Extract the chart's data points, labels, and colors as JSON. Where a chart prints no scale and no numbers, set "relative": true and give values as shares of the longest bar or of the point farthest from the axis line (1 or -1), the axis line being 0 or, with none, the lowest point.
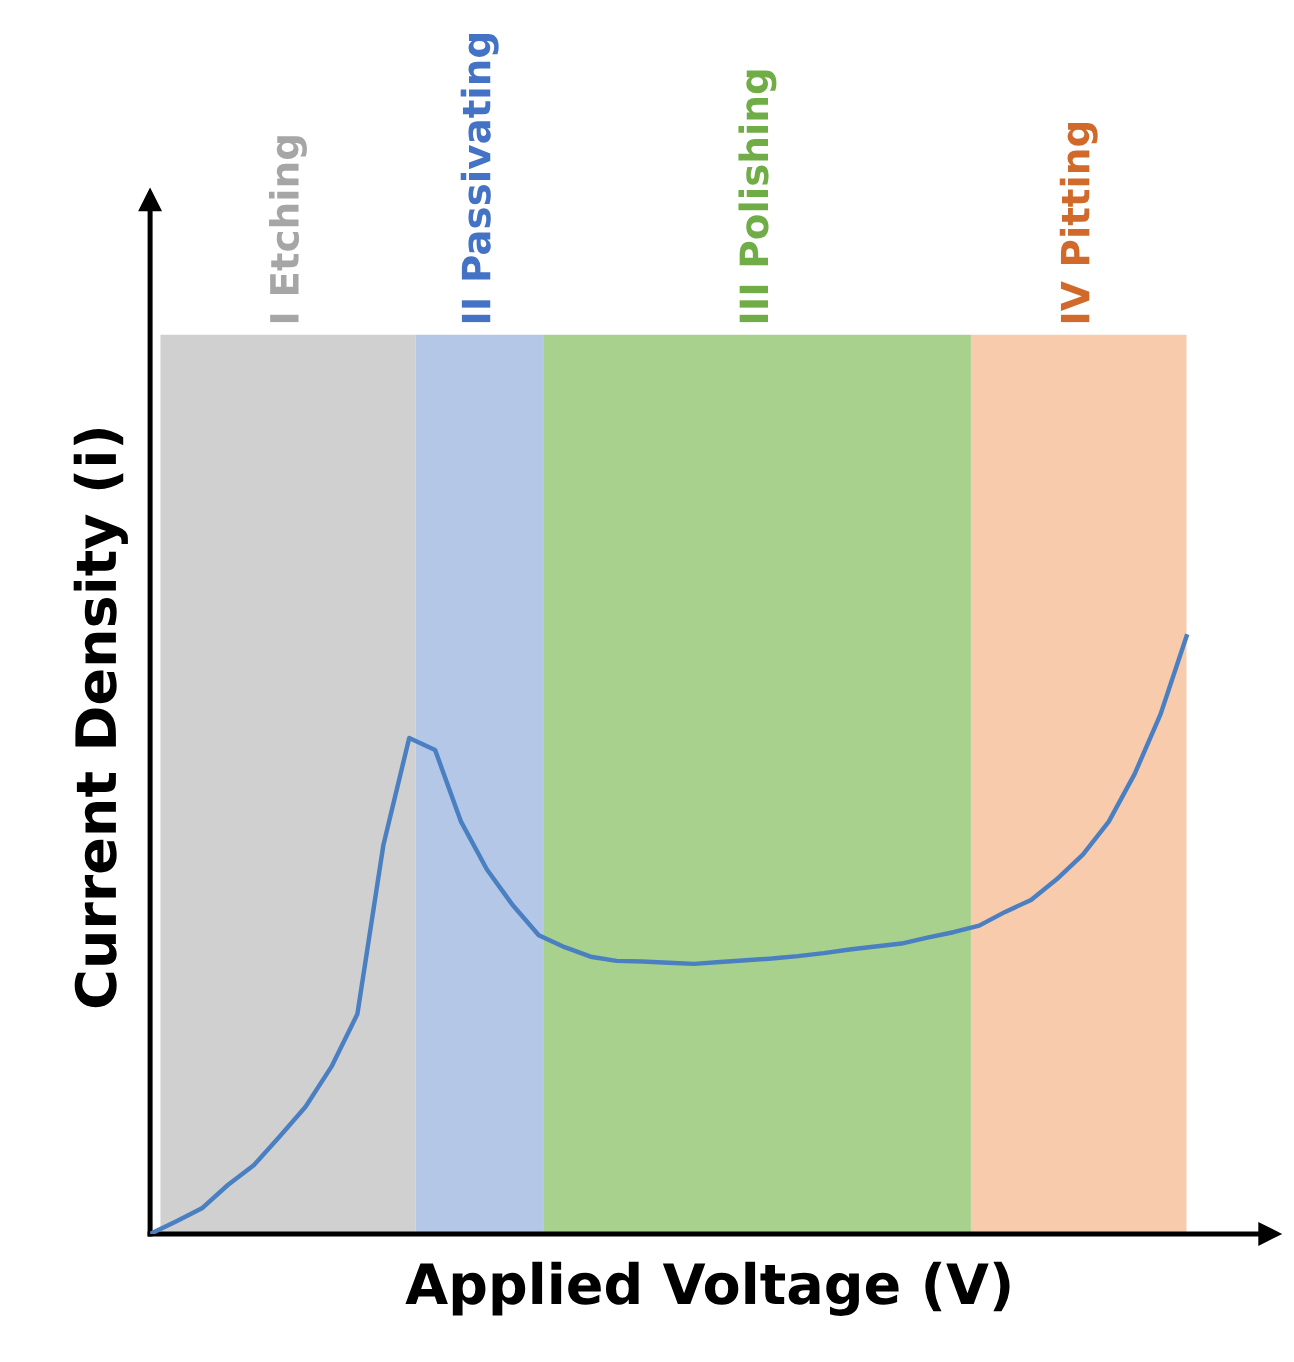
{
  "chart_data": {
    "type": "line",
    "relative": true,
    "xlabel": "Applied Voltage (V)",
    "ylabel": "Current Density (i)",
    "categories": [
      null,
      null,
      null,
      null,
      null,
      null,
      null,
      null,
      null,
      null,
      null,
      null,
      null,
      null,
      null,
      null,
      null,
      null,
      null,
      null,
      null,
      null,
      null,
      null,
      null,
      null,
      null,
      null,
      null,
      null,
      null,
      null,
      null,
      null,
      null,
      null,
      null,
      null,
      null,
      null,
      null
    ],
    "series": [
      {
        "color": "#4a7fc1",
        "values": [
          0,
          0.021,
          0.043,
          0.082,
          0.115,
          0.163,
          0.213,
          0.28,
          0.368,
          0.65,
          0.83,
          0.81,
          0.69,
          0.61,
          0.55,
          0.5,
          0.48,
          0.464,
          0.457,
          0.456,
          0.454,
          0.452,
          0.455,
          0.458,
          0.461,
          0.465,
          0.47,
          0.476,
          0.481,
          0.486,
          0.496,
          0.505,
          0.516,
          0.539,
          0.559,
          0.594,
          0.635,
          0.69,
          0.77,
          0.87,
          1
        ]
      }
    ],
    "annotations": [
      "I Etching",
      "II Passivating",
      "III Polishing",
      "IV Pitting"
    ]
  }
}
